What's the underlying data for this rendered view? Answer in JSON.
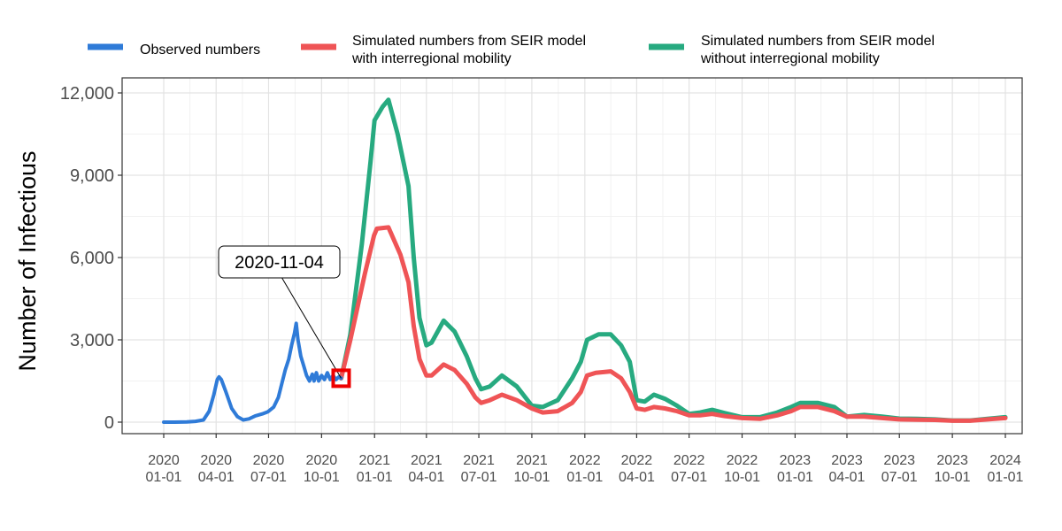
{
  "chart_data": {
    "type": "line",
    "ylabel": "Number of Infectious",
    "xlabel": "",
    "ylim": [
      0,
      12000
    ],
    "y_ticks": [
      0,
      3000,
      6000,
      9000,
      12000
    ],
    "y_tick_labels": [
      "0",
      "3,000",
      "6,000",
      "9,000",
      "12,000"
    ],
    "x_ticks": [
      "2020-01-01",
      "2020-04-01",
      "2020-07-01",
      "2020-10-01",
      "2021-01-01",
      "2021-04-01",
      "2021-07-01",
      "2021-10-01",
      "2022-01-01",
      "2022-04-01",
      "2022-07-01",
      "2022-10-01",
      "2023-01-01",
      "2023-04-01",
      "2023-07-01",
      "2023-10-01",
      "2024-01-01"
    ],
    "x_tick_labels": [
      [
        "2020",
        "01-01"
      ],
      [
        "2020",
        "04-01"
      ],
      [
        "2020",
        "07-01"
      ],
      [
        "2020",
        "10-01"
      ],
      [
        "2021",
        "01-01"
      ],
      [
        "2021",
        "04-01"
      ],
      [
        "2021",
        "07-01"
      ],
      [
        "2021",
        "10-01"
      ],
      [
        "2022",
        "01-01"
      ],
      [
        "2022",
        "04-01"
      ],
      [
        "2022",
        "07-01"
      ],
      [
        "2022",
        "10-01"
      ],
      [
        "2023",
        "01-01"
      ],
      [
        "2023",
        "04-01"
      ],
      [
        "2023",
        "07-01"
      ],
      [
        "2023",
        "10-01"
      ],
      [
        "2024",
        "01-01"
      ]
    ],
    "grid": true,
    "legend_position": "top",
    "annotation": {
      "label": "2020-11-04",
      "x": "2020-11-04",
      "y": 1600
    },
    "series": [
      {
        "name": "Observed numbers",
        "color": "#2f7bd8",
        "points": [
          [
            "2020-01-01",
            0
          ],
          [
            "2020-01-20",
            0
          ],
          [
            "2020-02-10",
            10
          ],
          [
            "2020-02-25",
            30
          ],
          [
            "2020-03-10",
            80
          ],
          [
            "2020-03-20",
            400
          ],
          [
            "2020-03-28",
            1000
          ],
          [
            "2020-04-03",
            1550
          ],
          [
            "2020-04-06",
            1650
          ],
          [
            "2020-04-10",
            1550
          ],
          [
            "2020-04-18",
            1100
          ],
          [
            "2020-04-28",
            500
          ],
          [
            "2020-05-08",
            200
          ],
          [
            "2020-05-18",
            80
          ],
          [
            "2020-05-28",
            120
          ],
          [
            "2020-06-08",
            230
          ],
          [
            "2020-06-20",
            300
          ],
          [
            "2020-06-30",
            380
          ],
          [
            "2020-07-10",
            550
          ],
          [
            "2020-07-18",
            900
          ],
          [
            "2020-07-24",
            1400
          ],
          [
            "2020-07-30",
            1900
          ],
          [
            "2020-08-05",
            2300
          ],
          [
            "2020-08-10",
            2800
          ],
          [
            "2020-08-15",
            3250
          ],
          [
            "2020-08-18",
            3600
          ],
          [
            "2020-08-21",
            3000
          ],
          [
            "2020-08-26",
            2400
          ],
          [
            "2020-08-31",
            2050
          ],
          [
            "2020-09-05",
            1700
          ],
          [
            "2020-09-10",
            1500
          ],
          [
            "2020-09-15",
            1750
          ],
          [
            "2020-09-18",
            1500
          ],
          [
            "2020-09-22",
            1800
          ],
          [
            "2020-09-26",
            1500
          ],
          [
            "2020-10-01",
            1700
          ],
          [
            "2020-10-06",
            1550
          ],
          [
            "2020-10-11",
            1800
          ],
          [
            "2020-10-16",
            1550
          ],
          [
            "2020-10-21",
            1700
          ],
          [
            "2020-10-26",
            1550
          ],
          [
            "2020-10-31",
            1650
          ],
          [
            "2020-11-04",
            1600
          ]
        ]
      },
      {
        "name": "Simulated numbers from SEIR model\nwith interregional mobility",
        "color": "#ef5456",
        "points": [
          [
            "2020-11-04",
            1600
          ],
          [
            "2020-11-20",
            3000
          ],
          [
            "2020-12-15",
            5400
          ],
          [
            "2020-12-31",
            6800
          ],
          [
            "2021-01-05",
            7050
          ],
          [
            "2021-01-25",
            7100
          ],
          [
            "2021-02-15",
            6100
          ],
          [
            "2021-03-01",
            5100
          ],
          [
            "2021-03-10",
            3500
          ],
          [
            "2021-03-20",
            2300
          ],
          [
            "2021-04-01",
            1700
          ],
          [
            "2021-04-10",
            1700
          ],
          [
            "2021-05-01",
            2100
          ],
          [
            "2021-05-20",
            1900
          ],
          [
            "2021-06-10",
            1400
          ],
          [
            "2021-06-25",
            900
          ],
          [
            "2021-07-05",
            700
          ],
          [
            "2021-07-20",
            800
          ],
          [
            "2021-08-10",
            1000
          ],
          [
            "2021-09-05",
            800
          ],
          [
            "2021-10-01",
            500
          ],
          [
            "2021-10-20",
            350
          ],
          [
            "2021-11-15",
            400
          ],
          [
            "2021-12-10",
            700
          ],
          [
            "2021-12-25",
            1100
          ],
          [
            "2022-01-05",
            1700
          ],
          [
            "2022-01-20",
            1800
          ],
          [
            "2022-02-15",
            1850
          ],
          [
            "2022-03-05",
            1600
          ],
          [
            "2022-03-20",
            1100
          ],
          [
            "2022-04-01",
            500
          ],
          [
            "2022-04-15",
            450
          ],
          [
            "2022-05-01",
            550
          ],
          [
            "2022-05-20",
            500
          ],
          [
            "2022-06-10",
            400
          ],
          [
            "2022-07-01",
            250
          ],
          [
            "2022-07-20",
            250
          ],
          [
            "2022-08-10",
            300
          ],
          [
            "2022-09-01",
            220
          ],
          [
            "2022-10-01",
            150
          ],
          [
            "2022-11-01",
            120
          ],
          [
            "2022-12-01",
            250
          ],
          [
            "2022-12-25",
            400
          ],
          [
            "2023-01-10",
            550
          ],
          [
            "2023-02-10",
            550
          ],
          [
            "2023-03-10",
            400
          ],
          [
            "2023-04-01",
            200
          ],
          [
            "2023-05-01",
            200
          ],
          [
            "2023-06-01",
            150
          ],
          [
            "2023-07-01",
            100
          ],
          [
            "2023-08-01",
            90
          ],
          [
            "2023-09-01",
            80
          ],
          [
            "2023-10-01",
            50
          ],
          [
            "2023-11-01",
            50
          ],
          [
            "2023-12-01",
            100
          ],
          [
            "2024-01-01",
            150
          ]
        ]
      },
      {
        "name": "Simulated numbers from SEIR model\nwithout interregional mobility",
        "color": "#27aa80",
        "points": [
          [
            "2020-11-04",
            1600
          ],
          [
            "2020-11-20",
            3200
          ],
          [
            "2020-12-10",
            6500
          ],
          [
            "2020-12-25",
            9500
          ],
          [
            "2021-01-01",
            11000
          ],
          [
            "2021-01-15",
            11500
          ],
          [
            "2021-01-25",
            11750
          ],
          [
            "2021-02-10",
            10500
          ],
          [
            "2021-03-01",
            8600
          ],
          [
            "2021-03-10",
            6000
          ],
          [
            "2021-03-20",
            3800
          ],
          [
            "2021-04-01",
            2800
          ],
          [
            "2021-04-10",
            2900
          ],
          [
            "2021-05-01",
            3700
          ],
          [
            "2021-05-20",
            3300
          ],
          [
            "2021-06-10",
            2400
          ],
          [
            "2021-06-25",
            1600
          ],
          [
            "2021-07-05",
            1200
          ],
          [
            "2021-07-20",
            1300
          ],
          [
            "2021-08-10",
            1700
          ],
          [
            "2021-09-05",
            1300
          ],
          [
            "2021-10-01",
            600
          ],
          [
            "2021-10-20",
            550
          ],
          [
            "2021-11-15",
            800
          ],
          [
            "2021-12-10",
            1600
          ],
          [
            "2021-12-25",
            2200
          ],
          [
            "2022-01-05",
            3000
          ],
          [
            "2022-01-25",
            3200
          ],
          [
            "2022-02-15",
            3200
          ],
          [
            "2022-03-05",
            2800
          ],
          [
            "2022-03-20",
            2200
          ],
          [
            "2022-04-01",
            800
          ],
          [
            "2022-04-15",
            750
          ],
          [
            "2022-05-01",
            1000
          ],
          [
            "2022-05-20",
            850
          ],
          [
            "2022-06-10",
            600
          ],
          [
            "2022-07-01",
            300
          ],
          [
            "2022-07-20",
            350
          ],
          [
            "2022-08-10",
            450
          ],
          [
            "2022-09-01",
            330
          ],
          [
            "2022-10-01",
            180
          ],
          [
            "2022-11-01",
            180
          ],
          [
            "2022-12-01",
            350
          ],
          [
            "2022-12-25",
            550
          ],
          [
            "2023-01-10",
            700
          ],
          [
            "2023-02-10",
            700
          ],
          [
            "2023-03-10",
            550
          ],
          [
            "2023-04-01",
            200
          ],
          [
            "2023-05-01",
            260
          ],
          [
            "2023-06-01",
            200
          ],
          [
            "2023-07-01",
            130
          ],
          [
            "2023-08-01",
            120
          ],
          [
            "2023-09-01",
            100
          ],
          [
            "2023-10-01",
            60
          ],
          [
            "2023-11-01",
            60
          ],
          [
            "2023-12-01",
            120
          ],
          [
            "2024-01-01",
            180
          ]
        ]
      }
    ]
  }
}
